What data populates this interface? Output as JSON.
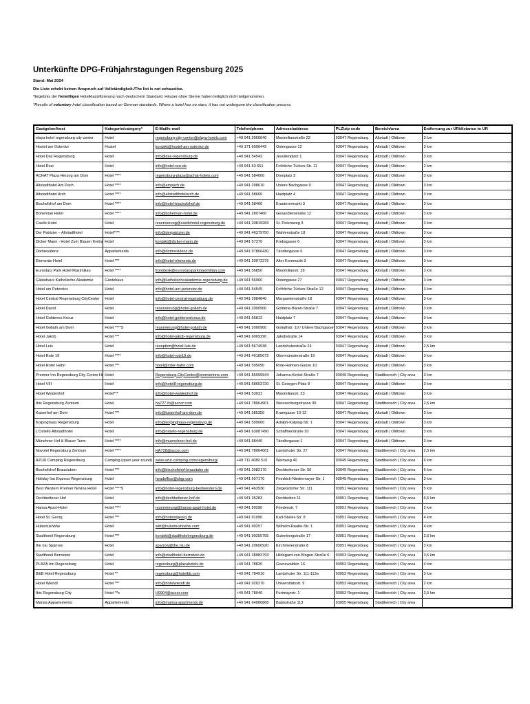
{
  "header": {
    "title": "Unterkünfte DPG-Frühjahrstagungen Regensburg 2025",
    "stand_line": "Stand: Mai 2024",
    "exhaustive_line": "Die Liste erhebt keinen Anspruch auf Vollständigkeit./The list is not exhaustive.",
    "footnote_de": [
      {
        "text": "*Ergebnis der ",
        "bold": false
      },
      {
        "text": "freiwilligen",
        "bold": true
      },
      {
        "text": " Hotelklassifizierung nach deutschem Standard. Häuser ohne Sterne haben lediglich nicht teilgenommen.",
        "bold": false
      }
    ],
    "footnote_en": [
      {
        "text": "*Results of ",
        "bold": false
      },
      {
        "text": "voluntary",
        "bold": true
      },
      {
        "text": " hotel classification based on German standards. Where a hotel has no stars, it has not undergone the classification process.",
        "bold": false
      }
    ]
  },
  "table": {
    "columns": [
      "Gastgeber/host",
      "Kategorie/category*",
      "E-Mail/e-mail",
      "Telefon/phone",
      "Adresse/address",
      "PLZ/zip code",
      "Bereich/area",
      "Entfernung zur UR/distance to UR"
    ],
    "cell_names": [
      "cell-host",
      "cell-category",
      "cell-email",
      "cell-phone",
      "cell-address",
      "cell-zip",
      "cell-area",
      "cell-distance"
    ],
    "rows": [
      [
        "elaya hotel regensburg city center",
        "Hotel",
        "regensburg-city-center@elaya-hotels.com",
        "+49 941 2060040",
        "Maximilianstraße 22",
        "93047 Regensburg",
        "Altstadt | Oldtown",
        "3 km"
      ],
      [
        "Hostel am Ostentor",
        "Hostel",
        "kontakt@hostel-am-ostentor.de",
        "+49 171 6996442",
        "Ostengasse 12",
        "93047 Regensburg",
        "Altstadt | Oldtown",
        "3 km"
      ],
      [
        "Hotel Das Regensburg",
        "Hotel",
        "info@das-regensburg.de",
        "+49 941 54542",
        "Jesuitenplatz 1",
        "93047 Regensburg",
        "Altstadt | Oldtown",
        "3 km"
      ],
      [
        "Hotel Rosi",
        "Hotel",
        "info@hotel-rosi.de",
        "+49 941 53 651",
        "Fröhliche-Türken-Str. 11",
        "93047 Regensburg",
        "Altstadt | Oldtown",
        "2 km"
      ],
      [
        "ACHAT Plaza Herzog am Dom",
        "Hotel ****",
        "regensburg-plaza@achat-hotels.com",
        "+49 941 584000",
        "Domplatz 3",
        "93047 Regensburg",
        "Altstadt | Oldtown",
        "3 km"
      ],
      [
        "Altstadthotel Am Pach",
        "Hotel ****",
        "info@ampach.de",
        "+49 941 298610",
        "Untere Bachgasse 9",
        "93047 Regensburg",
        "Altstadt | Oldtown",
        "3 km"
      ],
      [
        "Altstadthotel Arch",
        "Hotel ****",
        "info@altstadthotelarch.de",
        "+49 941 58660",
        "Haidplatz 4",
        "93047 Regensburg",
        "Altstadt | Oldtown",
        "3 km"
      ],
      [
        "Bischofshof am Dom",
        "Hotel ****",
        "info@hotel-bischofshof.de",
        "+49 941 58460",
        "Krauterermarkt 3",
        "93047 Regensburg",
        "Altstadt | Oldtown",
        "3 km"
      ],
      [
        "Bohemian Hotel",
        "Hotel ****",
        "info@bohemian-hotel.de",
        "+49 941 2807460",
        "Gesandtenstraße 12",
        "93047 Regensburg",
        "Altstadt | Oldtown",
        "3 km"
      ],
      [
        "Castle Hotel",
        "Hotel",
        "reservierung@castlehotel-regensburg.de",
        "+49 941 20819283",
        "St. Petersweg 3",
        "93047 Regensburg",
        "Altstadt | Oldtown",
        "3 km"
      ],
      [
        "Der Patrizier – Altstadthotel",
        "Hotel****",
        "info@derpatrizier.de",
        "+49 941 46379750",
        "Wahlenstraße 18",
        "93047 Regensburg",
        "Altstadt | Oldtown",
        "3 km"
      ],
      [
        "Dicker Mann - Hotel Zum Blauen Krebs",
        "Hotel",
        "kontakt@dicker-mann.de",
        "+49 941 57370",
        "Krebsgasse 6",
        "93047 Regensburg",
        "Altstadt | Oldtown",
        "3 km"
      ],
      [
        "Domresidenz",
        "Appartements",
        "info@domresidenz.de",
        "+49 941 97806430",
        "Tändlergasse 6",
        "93047 Regensburg",
        "Altstadt | Oldtown",
        "3 km"
      ],
      [
        "Elements Hotel",
        "Hotel ***",
        "info@hotel-elements.de",
        "+49 941 20072275",
        "Alter Kornmarkt 3",
        "93047 Regensburg",
        "Altstadt | Oldtown",
        "3 km"
      ],
      [
        "Eurostars Park Hotel Maximilian",
        "Hotel ****",
        "frontdesk@eurostarsparkmaximilian.com",
        "+49 941 56850",
        "Maximilianstr. 28",
        "93047 Regensburg",
        "Altstadt | Oldtown",
        "3 km"
      ],
      [
        "Gästehaus Katholische Akademie",
        "Gästehaus",
        "info@katholischeakademie-regensburg.de",
        "+49 941 56960",
        "Ostengasse 27",
        "93047 Regensburg",
        "Altstadt | Oldtown",
        "3 km"
      ],
      [
        "Hotel am Peterstor",
        "Hotel",
        "info@hotel-am-peterstor.de",
        "+49 941 54545",
        "Fröhliche-Türken-Straße 12",
        "93047 Regensburg",
        "Altstadt | Oldtown",
        "3 km"
      ],
      [
        "Hotel Central Regensburg CityCenter",
        "Hotel",
        "info@hotel-central-regensburg.de",
        "+49 941 2984840",
        "Margaretenstraße 18",
        "93047 Regensburg",
        "Altstadt | Oldtown",
        "3 km"
      ],
      [
        "Hotel David",
        "Hotel",
        "reservierung@hotel-goliath.de",
        "+49 941 2000900",
        "Goldene-Bären-Straße 7",
        "93047 Regensburg",
        "Altstadt | Oldtown",
        "3 km"
      ],
      [
        "Hotel Goldenes Kreuz",
        "Hotel",
        "info@hotel-goldeneskreuz.de",
        "+49 941 55812",
        "Haidplatz 7",
        "93047 Regensburg",
        "Altstadt | Oldtown",
        "3 km"
      ],
      [
        "Hotel Goliath am Dom",
        "Hotel ****S",
        "reservierung@hotel-goliath.de",
        "+49 941 2000900",
        "Goliathstr. 10 / Untere Bachgasse",
        "93047 Regensburg",
        "Altstadt | Oldtown",
        "3 km"
      ],
      [
        "Hotel Jakob",
        "Hotel ***",
        "info@hotel-jakob-regensburg.de",
        "+49 941 6009290",
        "Jakobstraße 14",
        "93047 Regensburg",
        "Altstadt | Oldtown",
        "3 km"
      ],
      [
        "Hotel Luis",
        "Hotel",
        "rezeption@hotel-luis.de",
        "+49 941 5674938",
        "Landshuterstraße 24",
        "93047 Regensburg",
        "Altstadt | Oldtown",
        "2,5 km"
      ],
      [
        "Hotel Rote 19",
        "Hotel ****",
        "info@hotel-rote19.de",
        "+49 941 46185672",
        "Obermünsterstraße 19",
        "93047 Regensburg",
        "Altstadt | Oldtown",
        "3 km"
      ],
      [
        "Hotel Roter Hahn",
        "Hotel ***",
        "hotel@roter-hahn.com",
        "+49 941 595090",
        "Rote-Hahnen-Gasse 10",
        "93047 Regensburg",
        "Altstadt | Oldtown",
        "3 km"
      ],
      [
        "Premier Inn Regensburg City Centre Hotel",
        "Hotel",
        "Regensburg.CityCentre@premierinns.com",
        "+49 941 85099944",
        "Johanna-Kinkel-Straße 7",
        "93049 Regensburg",
        "Stadtbereich | City area",
        "3 km"
      ],
      [
        "Hotel VIII",
        "Hotel",
        "info@hotel8-regensburg.de",
        "+49 941 58653720",
        "St. Georgen-Platz 8",
        "93047 Regensburg",
        "Altstadt | Oldtown",
        "3 km"
      ],
      [
        "Hotel Weidenhof",
        "Hotel***",
        "info@hotel-weidenhof.de",
        "+49 941 53031",
        "Maximilianstr. 23",
        "93047 Regensburg",
        "Altstadt | Oldtown",
        "3 km"
      ],
      [
        "Ibis Regensburg Zentrum",
        "Hotel",
        "ha727-fo@accor.com",
        "+49 941 78064901",
        "Weissenburgstrasse 30",
        "93047 Regensburg",
        "Stadtbereich | City area",
        "2,5 km"
      ],
      [
        "Kaiserhof am Dom",
        "Hotel ***",
        "info@kaiserhof-am-dom.de",
        "+49 941 585350",
        "Kramgasse 10-12",
        "93047 Regensburg",
        "Altstadt | Oldtown",
        "3 km"
      ],
      [
        "Kolpinghaus Regensburg",
        "Hotel",
        "info@kolpinghaus-regensburg.de",
        "+49 941 599000",
        "Adolph-Kolping-Str. 1",
        "93047 Regensburg",
        "Altstadt | Oldtown",
        "3 km"
      ],
      [
        "L'Ostello Altstadthotel",
        "Hotel",
        "info@ostello-regensburg.de",
        "+49 941 63087490",
        "Schäffnerstraße 20",
        "93047 Regensburg",
        "Altstadt | Oldtown",
        "3 km"
      ],
      [
        "Münchner Hof & Blauer Turm",
        "Hotel ****",
        "info@muenchner-hof.de",
        "+49 941 58440",
        "Tändlergasse 1",
        "93047 Regensburg",
        "Altstadt | Oldtown",
        "3 km"
      ],
      [
        "Novotel Regensburg Zentrum",
        "Hotel ****",
        "HA728@accor.com",
        "+49 941 78064001",
        "Landshuter Str. 27",
        "93047 Regensburg",
        "Stadtbereich | City area",
        "2,5 km"
      ],
      [
        "AZUR Camping Regensburg",
        "Camping (open year-round)",
        "www.azur-camping.com/regensburg/",
        "+49 711 4089 510",
        "Weinweg 40",
        "93049 Regensburg",
        "Stadtbereich | City area",
        "6 km"
      ],
      [
        "Bischofshof Braustuben",
        "Hotel ***",
        "info@bischofshof-braustube.de",
        "+49 941 2082170",
        "Dechbettener Str. 50",
        "93049 Regensburg",
        "Stadtbereich | City area",
        "5 km"
      ],
      [
        "Holiday Inn Express Regensburg",
        "Hotel",
        "headoffice@shgr.com",
        "+49 941 607170",
        "Friedrich-Niedermayer-Str. 1",
        "93049 Regensburg",
        "Stadtbereich | City area",
        "3 km"
      ],
      [
        "Best Western Premier Novina Hotel",
        "Hotel ****S",
        "info@hotel-regensburg-bestwestern.de",
        "+49 941 463930",
        "Ziegetsdorfer Str. 111",
        "93051 Regensburg",
        "Stadtbereich | City area",
        "5 km"
      ],
      [
        "Dechbettener Hof",
        "Hotel",
        "info@dechbettener-hof.de",
        "+49 941 35283",
        "Dechbetten 11",
        "93051 Regensburg",
        "Stadtbereich | City area",
        "6,5 km"
      ],
      [
        "Hansa Apart-Hotel",
        "Hotel ****",
        "reservierung@hansa-apart-hotel.de",
        "+49 941 99290",
        "Friedenstr. 7",
        "93051 Regensburg",
        "Stadtbereich | City area",
        "2 km"
      ],
      [
        "Hotel St. Georg",
        "Hotel ***",
        "info@hotelstgeorg.de",
        "+49 941 91090",
        "Karl-Stieler-Str. 8",
        "93051 Regensburg",
        "Stadtbereich | City area",
        "4 km"
      ],
      [
        "Hubertushöhe",
        "Hotel",
        "wirt@hubertushoehe.com",
        "+49 941 90257",
        "Wilhelm-Raabe-Str. 1",
        "93051 Regensburg",
        "Stadtbereich | City area",
        "4 km"
      ],
      [
        "Stadthotel Regensburg",
        "Hotel ***",
        "kontakt@stadthotelregensburg.de",
        "+49 941 99255755",
        "Gutenbergstraße 17",
        "93051 Regensburg",
        "Stadtbereich | City area",
        "2,5 km"
      ],
      [
        "the niu Sparrow",
        "Hotel",
        "sparrow@the.niu.de",
        "+49 941 20600920",
        "Kirchmeierstraße 8",
        "93051 Regensburg",
        "Stadtbereich | City area",
        "3 km"
      ],
      [
        "Stadthotel Bernstein",
        "Hotel",
        "info@stadthotel-bernstein.de",
        "+49 941 38983793",
        "Hildegard-von-Bingen-Straße 6",
        "93053 Regensburg",
        "Stadtbereich | City area",
        "3,5 km"
      ],
      [
        "PLAZA Inn Regensburg",
        "Hotel",
        "regensburg@plazahotels.de",
        "+49 941 78820",
        "Grunewaldstr. 16",
        "93053 Regensburg",
        "Stadtbereich | City area",
        "4 km"
      ],
      [
        "B&B Hotel Regensburg",
        "Hotel **",
        "regensburg@hotelbb.com",
        "+49 941 784910",
        "Landshuter Str. 111-113a",
        "93053 Regensburg",
        "Stadtbereich | City area",
        "3 km"
      ],
      [
        "Hotel Wiendl",
        "Hotel ***",
        "info@hotelwiendl.de",
        "+49 941 920270",
        "Universitätsstr. 9",
        "93053 Regensburg",
        "Stadtbereich | City area",
        "2 km"
      ],
      [
        "Ibis Regensburg City",
        "Hotel **s",
        "H0904@accor.com",
        "+49 941 78040",
        "Furtmayrstr. 1",
        "93053 Regensburg",
        "Stadtbereich | City area",
        "2,5 km"
      ],
      [
        "Marisa Appartements",
        "Appartements",
        "info@marisa-apartments.de",
        "+49 941 64086868",
        "Babostraße 113",
        "93055 Regensburg",
        "Stadtbereich | City area",
        ""
      ]
    ]
  }
}
